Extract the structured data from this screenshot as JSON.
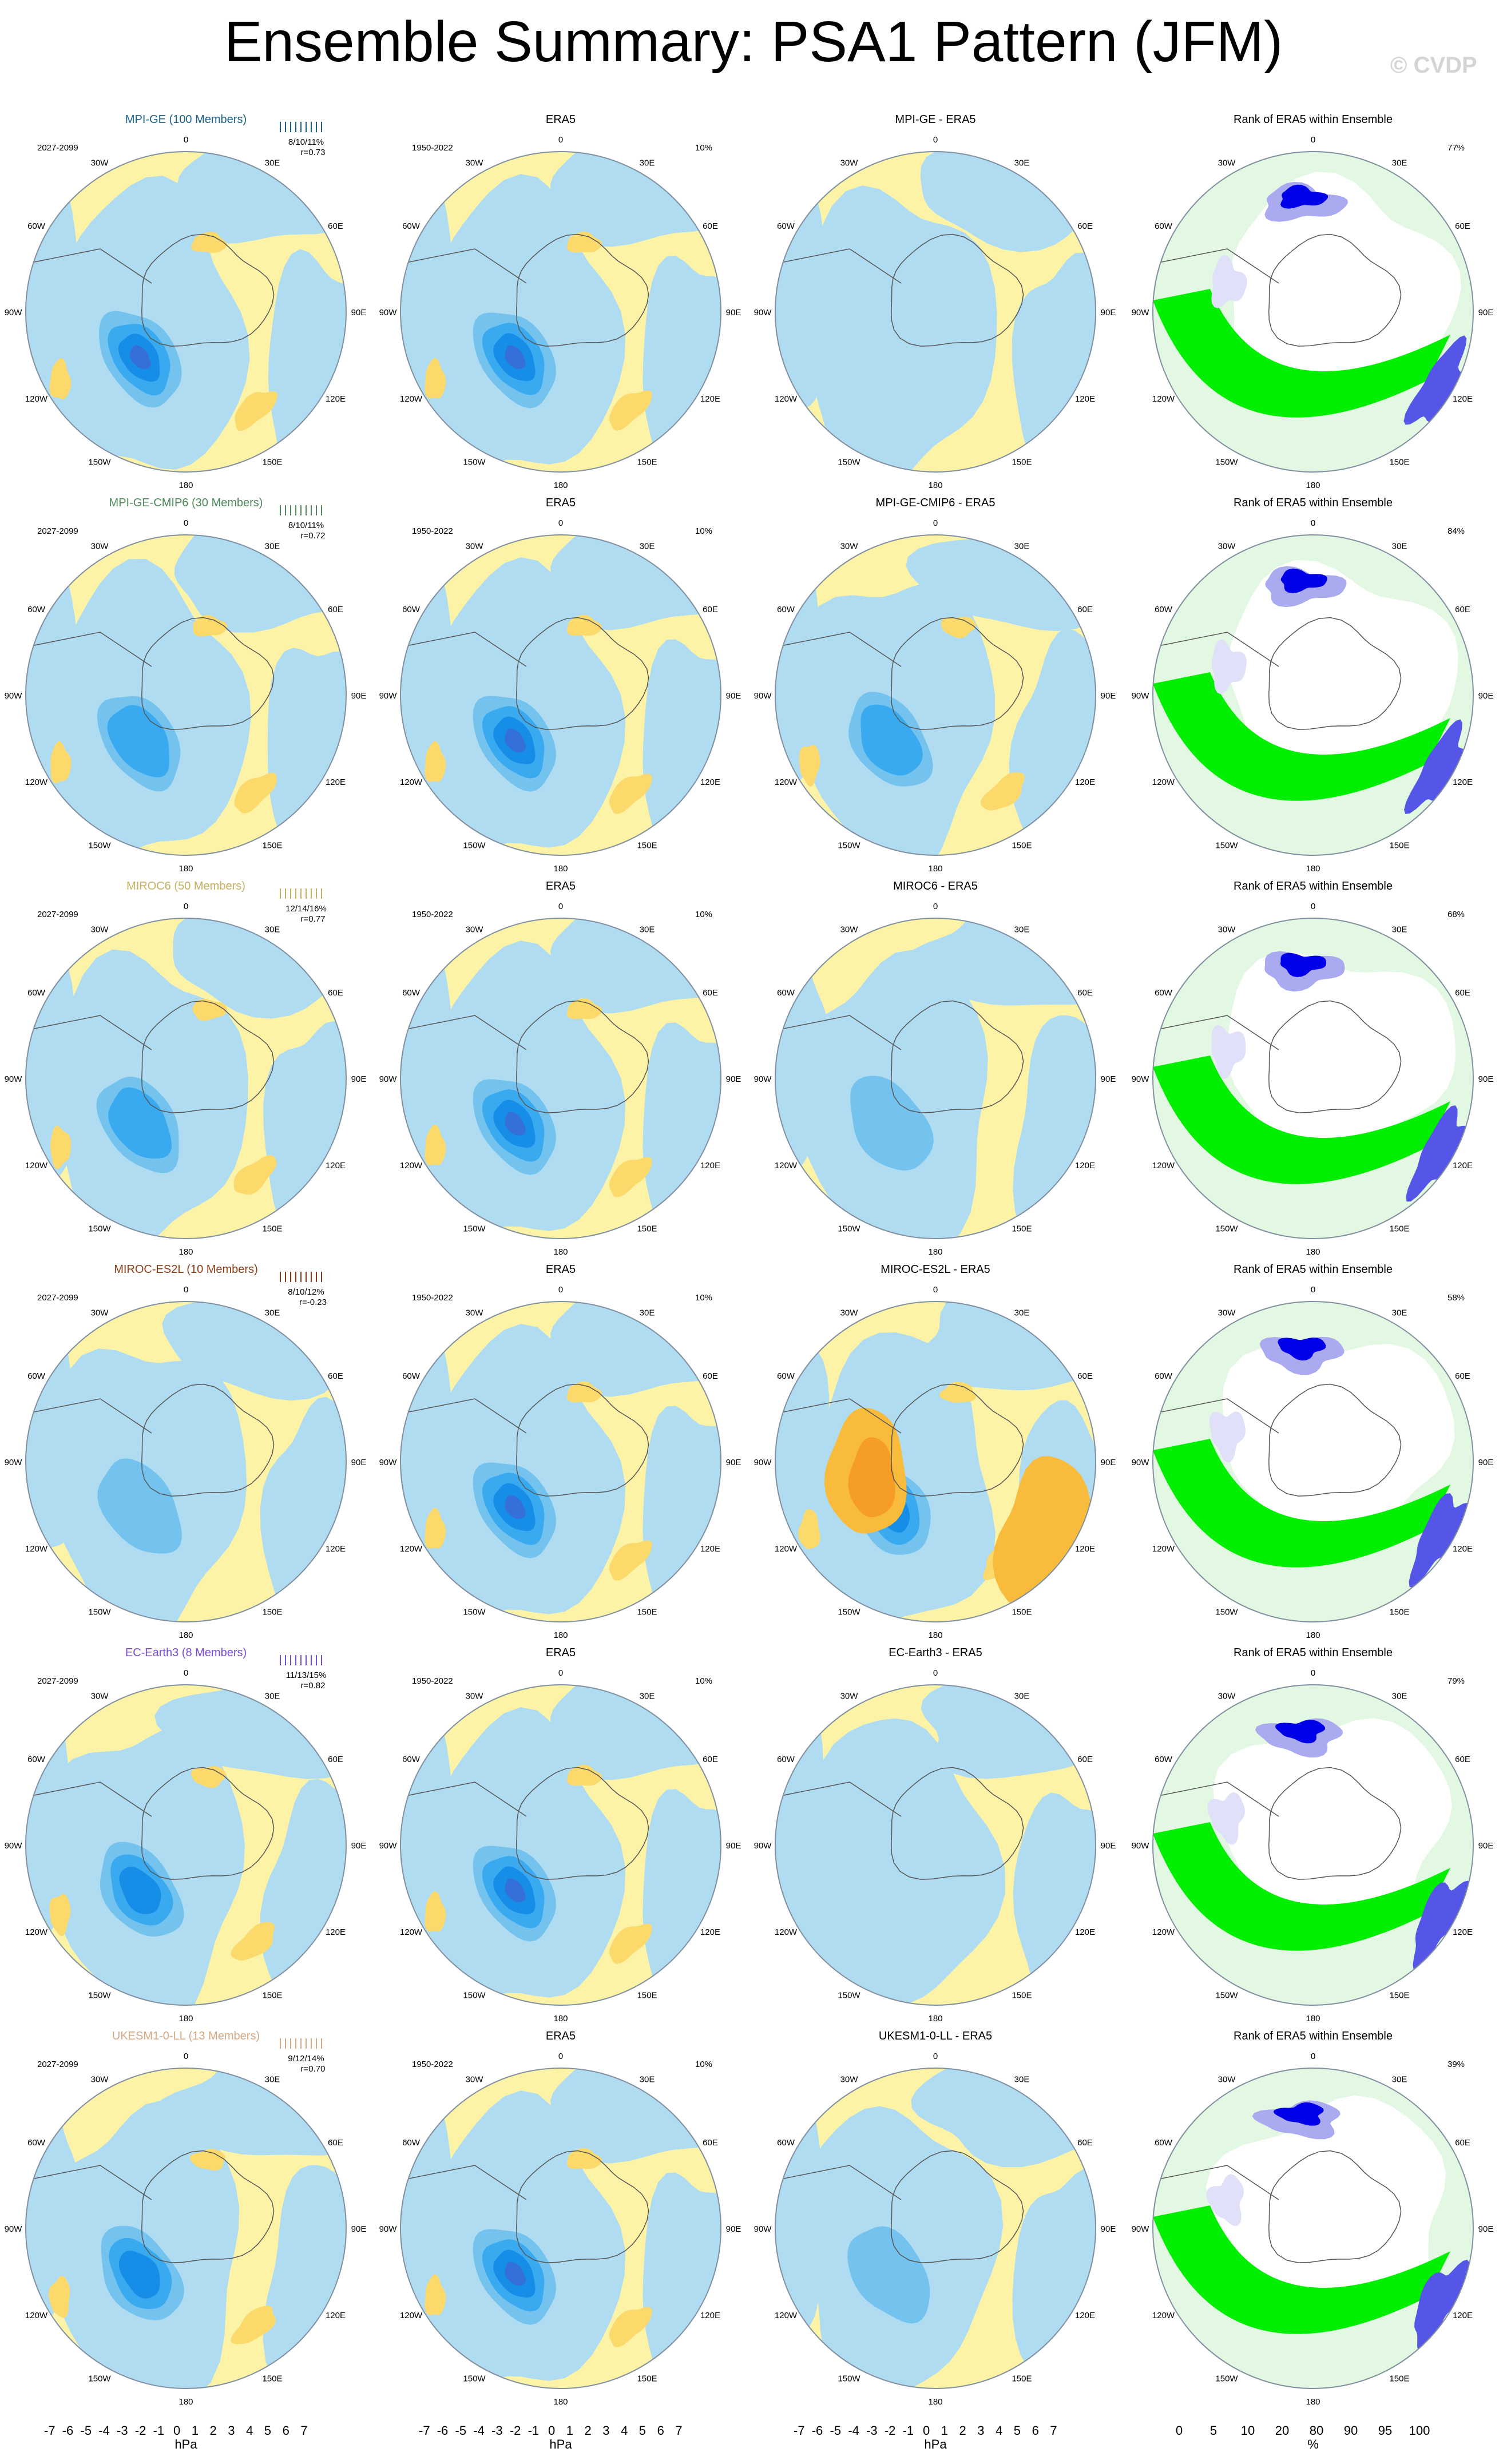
{
  "title": "Ensemble Summary: PSA1 Pattern (JFM)",
  "watermark": "© CVDP",
  "colors": {
    "ocean_pos": "#fdf3a7",
    "ocean_neg": "#b0dcf2",
    "blue_levels": [
      "#b0dcf2",
      "#74c2ee",
      "#3aaaf0",
      "#168ee8",
      "#3470d8",
      "#3e4ed6",
      "#3a30c8"
    ],
    "warm_levels": [
      "#fdf3a7",
      "#fbd96a",
      "#f9bb3c",
      "#f59d25",
      "#f07820"
    ],
    "rank_blue_dark": "#0000e8",
    "rank_blue_mid": "#5555e8",
    "rank_blue_light": "#aaaaf0",
    "rank_blue_pale": "#e0e0f8",
    "rank_green": "#00ee00",
    "rank_green_mid": "#77ee77",
    "rank_green_pale": "#e2f8e2"
  },
  "chart_data": {
    "type": "heatmap",
    "projection": "south-polar stereographic",
    "longitude_labels": [
      "0",
      "30E",
      "60E",
      "90E",
      "120E",
      "150E",
      "180",
      "150W",
      "120W",
      "90W",
      "60W",
      "30W"
    ],
    "rows": [
      {
        "model": "MPI-GE (100 Members)",
        "model_color": "#1a5f8a",
        "period": "2027-2099",
        "stats": [
          "8/10/11%",
          "r=0.73"
        ],
        "diff_title": "MPI-GE - ERA5",
        "model_amplitude": 5,
        "diff_amplitude": 1,
        "rank_pct": "77%"
      },
      {
        "model": "MPI-GE-CMIP6 (30 Members)",
        "model_color": "#4e8a5a",
        "period": "2027-2099",
        "stats": [
          "8/10/11%",
          "r=0.72"
        ],
        "diff_title": "MPI-GE-CMIP6 - ERA5",
        "model_amplitude": 3,
        "diff_amplitude": 3,
        "rank_pct": "84%"
      },
      {
        "model": "MIROC6 (50 Members)",
        "model_color": "#c8b060",
        "period": "2027-2099",
        "stats": [
          "12/14/16%",
          "r=0.77"
        ],
        "diff_title": "MIROC6 - ERA5",
        "model_amplitude": 3,
        "diff_amplitude": 2,
        "rank_pct": "68%"
      },
      {
        "model": "MIROC-ES2L (10 Members)",
        "model_color": "#8a3a14",
        "period": "2027-2099",
        "stats": [
          "8/10/12%",
          "r=-0.23"
        ],
        "diff_title": "MIROC-ES2L - ERA5",
        "model_amplitude": 2,
        "diff_amplitude": 4,
        "rank_pct": "58%"
      },
      {
        "model": "EC-Earth3 (8 Members)",
        "model_color": "#7a4ad8",
        "period": "2027-2099",
        "stats": [
          "11/13/15%",
          "r=0.82"
        ],
        "diff_title": "EC-Earth3 - ERA5",
        "model_amplitude": 4,
        "diff_amplitude": 1,
        "rank_pct": "79%"
      },
      {
        "model": "UKESM1-0-LL (13 Members)",
        "model_color": "#d8a880",
        "period": "2027-2099",
        "stats": [
          "9/12/14%",
          "r=0.70"
        ],
        "diff_title": "UKESM1-0-LL - ERA5",
        "model_amplitude": 4,
        "diff_amplitude": 2,
        "rank_pct": "39%"
      }
    ],
    "era5": {
      "title": "ERA5",
      "period": "1950-2022",
      "variance": "10%",
      "amplitude": 5
    },
    "rank_title": "Rank of ERA5 within Ensemble",
    "colorbar_hpa": {
      "ticks": [
        "-7",
        "-6",
        "-5",
        "-4",
        "-3",
        "-2",
        "-1",
        "0",
        "1",
        "2",
        "3",
        "4",
        "5",
        "6",
        "7"
      ],
      "unit": "hPa",
      "colors": [
        "#8a2ae8",
        "#3a30c8",
        "#3e4ed6",
        "#3470d8",
        "#168ee8",
        "#3aaaf0",
        "#74c2ee",
        "#b0dcf2",
        "#fdf3a7",
        "#fbd96a",
        "#f9bb3c",
        "#f59d25",
        "#f07820",
        "#e84820",
        "#d82020",
        "#c81818",
        "#f0a8a8"
      ]
    },
    "colorbar_rank": {
      "ticks": [
        "0",
        "5",
        "10",
        "20",
        "80",
        "90",
        "95",
        "100"
      ],
      "unit": "%",
      "colors": [
        "#0000e8",
        "#5555e8",
        "#aaaaf0",
        "#e0e0f8",
        "#ffffff",
        "#e2f8e2",
        "#aaf0aa",
        "#77ee77",
        "#00ee00"
      ]
    }
  }
}
